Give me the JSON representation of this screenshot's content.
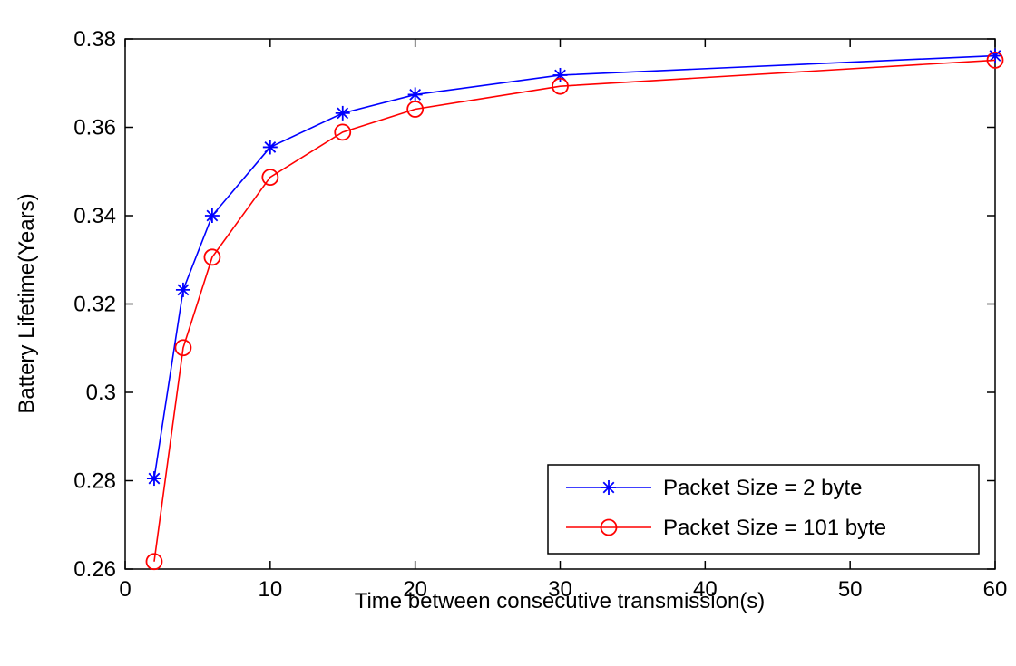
{
  "chart_data": {
    "type": "line",
    "title": "",
    "xlabel": "Time between consecutive transmission(s)",
    "ylabel": "Battery Lifetime(Years)",
    "xlim": [
      0,
      60
    ],
    "ylim": [
      0.26,
      0.38
    ],
    "xticks": [
      0,
      10,
      20,
      30,
      40,
      50,
      60
    ],
    "xtick_labels": [
      "0",
      "10",
      "20",
      "30",
      "40",
      "50",
      "60"
    ],
    "yticks": [
      0.26,
      0.28,
      0.3,
      0.32,
      0.34,
      0.36,
      0.38
    ],
    "ytick_labels": [
      "0.26",
      "0.28",
      "0.3",
      "0.32",
      "0.34",
      "0.36",
      "0.38"
    ],
    "grid": false,
    "legend_position": "bottom-right",
    "x": [
      2,
      4,
      6,
      10,
      15,
      20,
      30,
      60
    ],
    "series": [
      {
        "name": "Packet Size = 2 byte",
        "color": "#0000ff",
        "marker": "star",
        "values": [
          0.2805,
          0.3232,
          0.34,
          0.3555,
          0.3632,
          0.3674,
          0.3718,
          0.3762
        ]
      },
      {
        "name": "Packet Size = 101 byte",
        "color": "#ff0000",
        "marker": "circle",
        "values": [
          0.2617,
          0.3101,
          0.3306,
          0.3487,
          0.3589,
          0.3641,
          0.3693,
          0.3752
        ]
      }
    ]
  }
}
